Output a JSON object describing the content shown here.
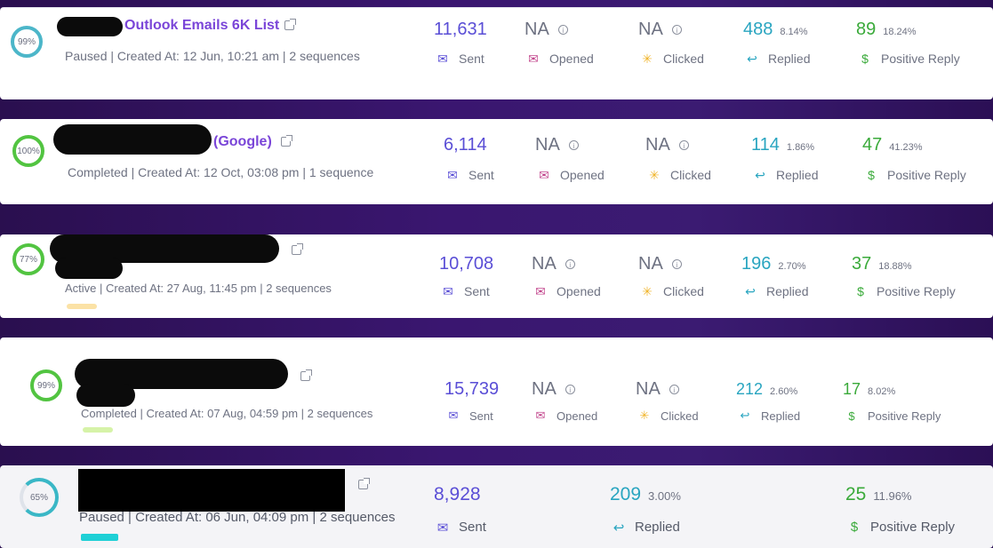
{
  "labels": {
    "sent": "Sent",
    "opened": "Opened",
    "clicked": "Clicked",
    "replied": "Replied",
    "positive_reply": "Positive Reply"
  },
  "colors": {
    "accent_purple": "#5a4ed6",
    "replied_teal": "#29a5c0",
    "positive_green": "#3aaa3a",
    "name_purple": "#7a45d8"
  },
  "campaigns": [
    {
      "progress": "99%",
      "name": "Outlook Emails 6K List",
      "meta": "Paused | Created At: 12 Jun, 10:21 am | 2 sequences",
      "sent": "11,631",
      "opened": "NA",
      "clicked": "NA",
      "replied": "488",
      "replied_pct": "8.14%",
      "positive": "89",
      "positive_pct": "18.24%"
    },
    {
      "progress": "100%",
      "name": "(Google)",
      "meta": "Completed | Created At: 12 Oct, 03:08 pm | 1 sequence",
      "sent": "6,114",
      "opened": "NA",
      "clicked": "NA",
      "replied": "114",
      "replied_pct": "1.86%",
      "positive": "47",
      "positive_pct": "41.23%"
    },
    {
      "progress": "77%",
      "name": "",
      "meta": "Active | Created At: 27 Aug, 11:45 pm | 2 sequences",
      "sent": "10,708",
      "opened": "NA",
      "clicked": "NA",
      "replied": "196",
      "replied_pct": "2.70%",
      "positive": "37",
      "positive_pct": "18.88%"
    },
    {
      "progress": "99%",
      "name": "",
      "meta": "Completed | Created At: 07 Aug, 04:59 pm | 2 sequences",
      "sent": "15,739",
      "opened": "NA",
      "clicked": "NA",
      "replied": "212",
      "replied_pct": "2.60%",
      "positive": "17",
      "positive_pct": "8.02%"
    },
    {
      "progress": "65%",
      "name": "",
      "meta": "Paused | Created At: 06 Jun, 04:09 pm | 2 sequences",
      "sent": "8,928",
      "replied": "209",
      "replied_pct": "3.00%",
      "positive": "25",
      "positive_pct": "11.96%"
    }
  ]
}
